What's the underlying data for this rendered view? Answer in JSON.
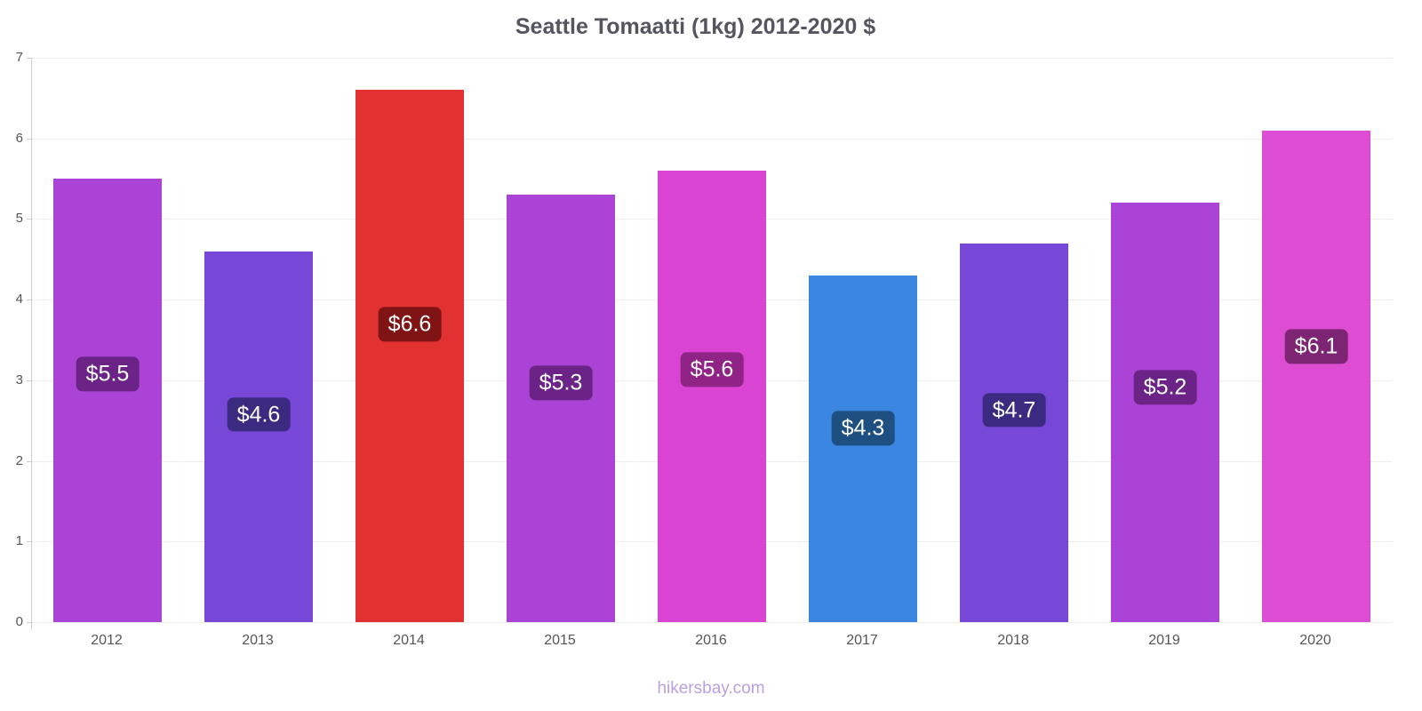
{
  "title": "Seattle Tomaatti (1kg) 2012-2020 $",
  "watermark": "hikersbay.com",
  "chart_data": {
    "type": "bar",
    "title": "Seattle Tomaatti (1kg) 2012-2020 $",
    "xlabel": "",
    "ylabel": "",
    "currency": "$",
    "categories": [
      "2012",
      "2013",
      "2014",
      "2015",
      "2016",
      "2017",
      "2018",
      "2019",
      "2020"
    ],
    "values": [
      5.5,
      4.6,
      6.6,
      5.3,
      5.6,
      4.3,
      4.7,
      5.2,
      6.1
    ],
    "bar_labels": [
      "$5.5",
      "$4.6",
      "$6.6",
      "$5.3",
      "$5.6",
      "$4.3",
      "$4.7",
      "$5.2",
      "$6.1"
    ],
    "bar_colors": [
      "#ab44d6",
      "#7747d8",
      "#e13131",
      "#ab44d6",
      "#d944d2",
      "#3a86e0",
      "#7747d8",
      "#ab44d6",
      "#dd4dd4"
    ],
    "label_colors": [
      "#6b2387",
      "#3a2b80",
      "#801414",
      "#6b2387",
      "#8f2486",
      "#1d4f80",
      "#3a2b80",
      "#6b2387",
      "#7d2473"
    ],
    "ylim": [
      0,
      7
    ],
    "yticks": [
      0,
      1,
      2,
      3,
      4,
      5,
      6,
      7
    ],
    "grid": true,
    "legend": false
  }
}
